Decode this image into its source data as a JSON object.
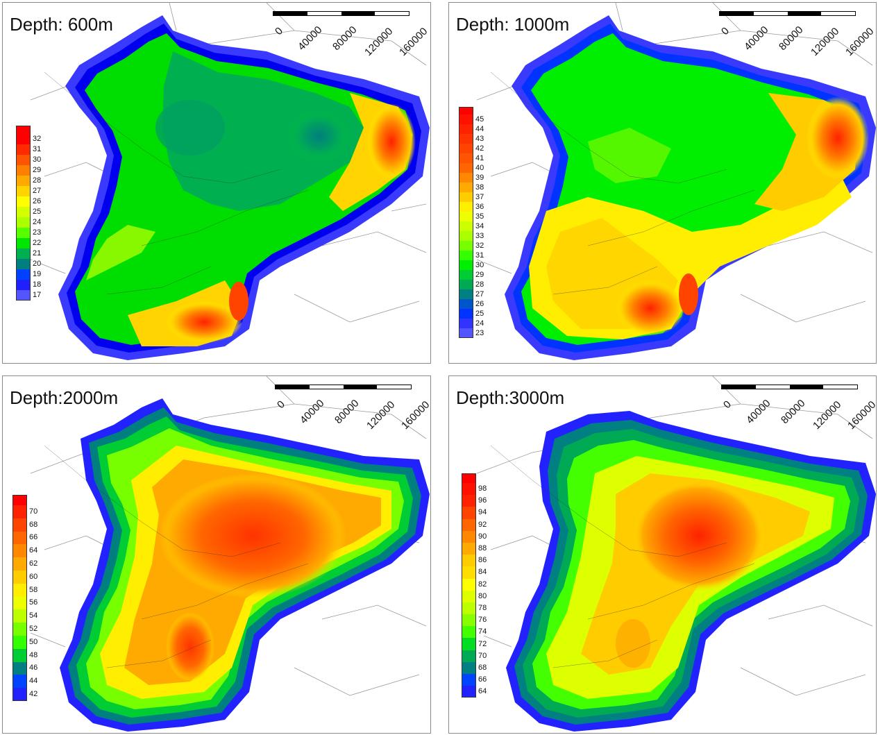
{
  "panels": [
    {
      "id": "p600",
      "title": "Depth: 600m",
      "legend_labels": [
        "32",
        "31",
        "30",
        "29",
        "28",
        "27",
        "26",
        "25",
        "24",
        "23",
        "22",
        "21",
        "20",
        "19",
        "18",
        "17"
      ],
      "legend_colors": [
        "#ff0000",
        "#ff2a00",
        "#ff5500",
        "#ff7f00",
        "#ffaa00",
        "#ffd400",
        "#ffff00",
        "#d4ff00",
        "#aaff00",
        "#55ff00",
        "#00e600",
        "#00b050",
        "#007f7f",
        "#0040ff",
        "#2020ff",
        "#5555ff"
      ],
      "legend_top_color": "#ff0000"
    },
    {
      "id": "p1000",
      "title": "Depth: 1000m",
      "legend_labels": [
        "45",
        "44",
        "43",
        "42",
        "41",
        "40",
        "39",
        "38",
        "37",
        "36",
        "35",
        "34",
        "33",
        "32",
        "31",
        "30",
        "29",
        "28",
        "27",
        "26",
        "25",
        "24",
        "23"
      ],
      "legend_colors": [
        "#ff1100",
        "#ff2200",
        "#ff3300",
        "#ff4400",
        "#ff5500",
        "#ff6600",
        "#ff8800",
        "#ffaa00",
        "#ffcc00",
        "#ffee00",
        "#eeff00",
        "#ccff00",
        "#aaff00",
        "#77ff00",
        "#33ff00",
        "#00ee00",
        "#00cc33",
        "#00aa55",
        "#008080",
        "#0055cc",
        "#0033ff",
        "#3333ff",
        "#5555ff"
      ],
      "legend_top_color": "#ff0000"
    },
    {
      "id": "p2000",
      "title": "Depth:2000m",
      "legend_labels": [
        "70",
        "68",
        "66",
        "64",
        "62",
        "60",
        "58",
        "56",
        "54",
        "52",
        "50",
        "48",
        "46",
        "44",
        "42"
      ],
      "legend_colors": [
        "#ff2200",
        "#ff4400",
        "#ff6600",
        "#ff8800",
        "#ffaa00",
        "#ffcc00",
        "#ffee00",
        "#eeff00",
        "#bbff00",
        "#77ff00",
        "#33ff00",
        "#00cc33",
        "#008080",
        "#0044ff",
        "#2222ff"
      ],
      "legend_top_color": "#ff0000"
    },
    {
      "id": "p3000",
      "title": "Depth:3000m",
      "legend_labels": [
        "98",
        "96",
        "94",
        "92",
        "90",
        "88",
        "86",
        "84",
        "82",
        "80",
        "78",
        "76",
        "74",
        "72",
        "70",
        "68",
        "66",
        "64"
      ],
      "legend_colors": [
        "#ff1100",
        "#ff2200",
        "#ff4400",
        "#ff6600",
        "#ff8800",
        "#ffaa00",
        "#ffcc00",
        "#ffdd00",
        "#ffff00",
        "#ddff00",
        "#bbff00",
        "#88ff00",
        "#44ff00",
        "#00dd22",
        "#00aa55",
        "#008080",
        "#0044ff",
        "#2222ff"
      ],
      "legend_top_color": "#ff0000"
    }
  ],
  "scale_labels": [
    "0",
    "40000",
    "80000",
    "120000",
    "160000"
  ],
  "colors": {
    "fill_outer": "#3a3aff",
    "fill_ring": "#0000ff",
    "border_lines": "#999999",
    "contour_lines": "#333333"
  }
}
